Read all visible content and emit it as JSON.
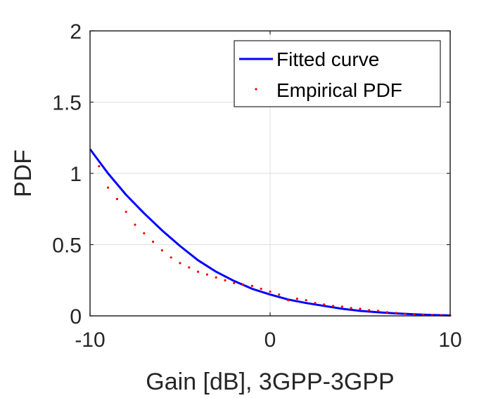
{
  "chart_data": {
    "type": "line",
    "title": "",
    "xlabel": "Gain [dB], 3GPP-3GPP",
    "ylabel": "PDF",
    "xlim": [
      -10,
      10
    ],
    "ylim": [
      0,
      2
    ],
    "xticks": [
      -10,
      0,
      10
    ],
    "xtick_labels": [
      "-10",
      "0",
      "10"
    ],
    "yticks": [
      0,
      0.5,
      1,
      1.5,
      2
    ],
    "ytick_labels": [
      "0",
      "0.5",
      "1",
      "1.5",
      "2"
    ],
    "grid": true,
    "legend_position": "top-right",
    "series": [
      {
        "name": "Fitted curve",
        "style": "line",
        "color": "#0000ff",
        "x": [
          -10,
          -9,
          -8,
          -7,
          -6,
          -5,
          -4,
          -3,
          -2,
          -1,
          0,
          1,
          2,
          3,
          4,
          5,
          6,
          7,
          8,
          9,
          10
        ],
        "y": [
          1.17,
          1.0,
          0.85,
          0.72,
          0.6,
          0.49,
          0.39,
          0.31,
          0.245,
          0.19,
          0.15,
          0.115,
          0.09,
          0.07,
          0.05,
          0.035,
          0.025,
          0.017,
          0.011,
          0.006,
          0.003
        ]
      },
      {
        "name": "Empirical PDF",
        "style": "dots",
        "color": "#ff0000",
        "x": [
          -9.5,
          -9.0,
          -8.5,
          -8.0,
          -7.5,
          -7.0,
          -6.5,
          -6.0,
          -5.5,
          -5.0,
          -4.5,
          -4.0,
          -3.5,
          -3.0,
          -2.5,
          -2.0,
          -1.5,
          -1.0,
          -0.5,
          0.0,
          0.5,
          1.0,
          1.5,
          2.0,
          2.5,
          3.0,
          3.5,
          4.0,
          4.5,
          5.0,
          5.5,
          6.0,
          6.5,
          7.0,
          7.5,
          8.0,
          8.5,
          9.0,
          9.5,
          10.0
        ],
        "y": [
          1.05,
          0.9,
          0.82,
          0.73,
          0.64,
          0.58,
          0.52,
          0.46,
          0.41,
          0.37,
          0.34,
          0.31,
          0.29,
          0.27,
          0.25,
          0.23,
          0.22,
          0.21,
          0.19,
          0.17,
          0.15,
          0.11,
          0.12,
          0.11,
          0.09,
          0.08,
          0.07,
          0.065,
          0.055,
          0.05,
          0.04,
          0.035,
          0.025,
          0.02,
          0.015,
          0.012,
          0.008,
          0.005,
          0.004,
          0.003
        ]
      }
    ]
  }
}
